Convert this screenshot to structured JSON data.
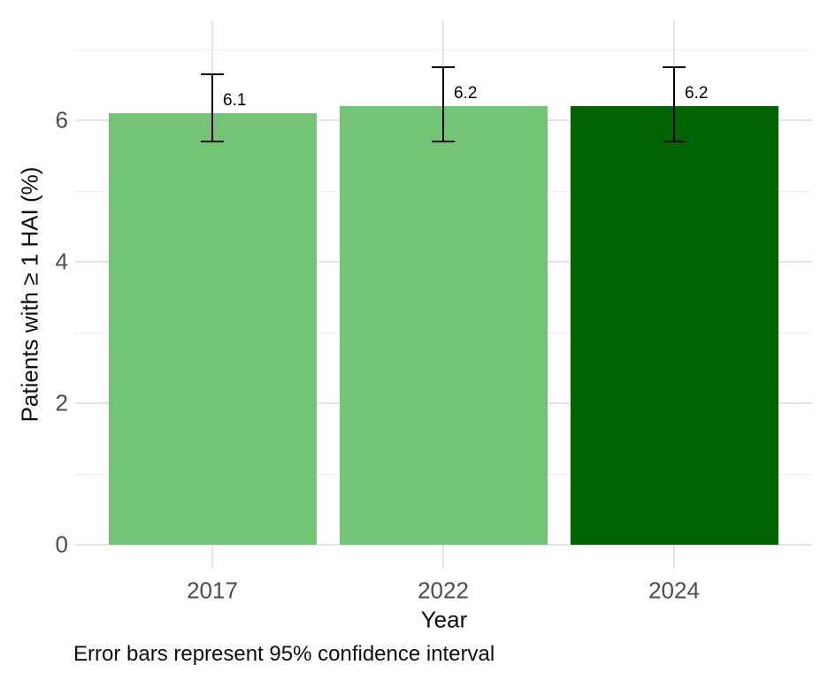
{
  "chart_data": {
    "type": "bar",
    "title": "",
    "xlabel": "Year",
    "ylabel": "Patients with ≥ 1 HAI (%)",
    "caption": "Error bars represent 95% confidence interval",
    "categories": [
      "2017",
      "2022",
      "2024"
    ],
    "values": [
      6.1,
      6.2,
      6.2
    ],
    "value_labels": [
      "6.1",
      "6.2",
      "6.2"
    ],
    "error_bars": {
      "meaning": "95% confidence interval",
      "lower": [
        5.7,
        5.7,
        5.7
      ],
      "upper": [
        6.65,
        6.75,
        6.75
      ]
    },
    "bar_colors": [
      "#74c476",
      "#74c476",
      "#006400"
    ],
    "ylim": [
      0,
      7.4
    ],
    "y_major_ticks": [
      0,
      2,
      4,
      6
    ],
    "y_minor_ticks": [
      1,
      3,
      5,
      7
    ],
    "grid": "horizontal major+minor, vertical line per category",
    "legend": "none"
  },
  "colors": {
    "light_green": "#74c476",
    "dark_green": "#006400",
    "grid_major": "#e2e2e2",
    "grid_minor": "#efefef",
    "grid_vertical": "#e5e5e5",
    "tick_label": "#4d4d4d",
    "text": "#0d0d0d",
    "error_bar": "#000000",
    "background": "#ffffff"
  }
}
